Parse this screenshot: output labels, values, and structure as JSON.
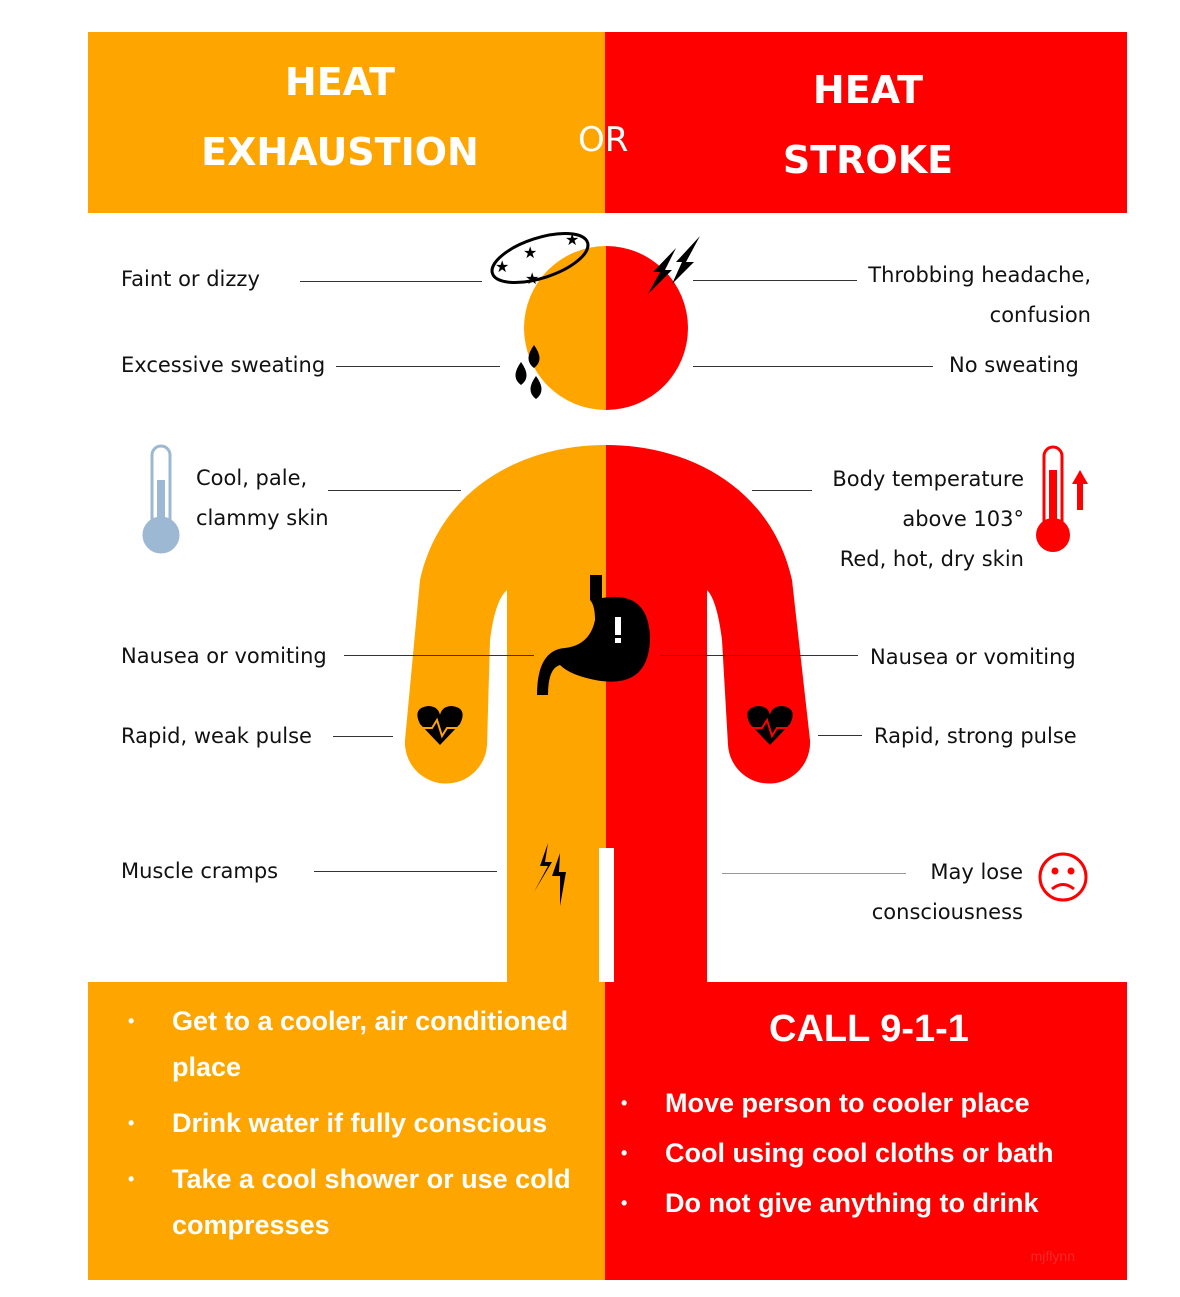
{
  "colors": {
    "exhaustion": "#FFA500",
    "stroke": "#FF0000",
    "icon": "#000000",
    "thermo_cool": "#9DB8D2"
  },
  "header": {
    "left_title_line1": "HEAT",
    "left_title_line2": "EXHAUSTION",
    "or": "OR",
    "right_title_line1": "HEAT",
    "right_title_line2": "STROKE"
  },
  "exhaustion_symptoms": [
    {
      "text": "Faint or dizzy",
      "icon": "dizzy-stars-icon"
    },
    {
      "text": "Excessive sweating",
      "icon": "sweat-drops-icon"
    },
    {
      "line1": "Cool, pale,",
      "line2": "clammy skin",
      "icon": "cool-thermometer-icon"
    },
    {
      "text": "Nausea or vomiting",
      "icon": "stomach-icon"
    },
    {
      "text": "Rapid, weak pulse",
      "icon": "heart-pulse-icon"
    },
    {
      "text": "Muscle cramps",
      "icon": "lightning-icon"
    }
  ],
  "stroke_symptoms": [
    {
      "line1": "Throbbing headache,",
      "line2": "confusion",
      "icon": "lightning-icon"
    },
    {
      "text": "No sweating"
    },
    {
      "line1": "Body temperature",
      "line2": "above 103°",
      "line3": "Red, hot, dry skin",
      "icon": "hot-thermometer-icon"
    },
    {
      "text": "Nausea or vomiting",
      "icon": "stomach-icon"
    },
    {
      "text": "Rapid, strong pulse",
      "icon": "heart-pulse-icon"
    },
    {
      "line1": "May lose",
      "line2": "consciousness",
      "icon": "sad-face-icon"
    }
  ],
  "exhaustion_actions": [
    "Get to a cooler, air conditioned place",
    "Drink water if fully conscious",
    "Take a cool shower or use cold compresses"
  ],
  "stroke_actions": {
    "title": "CALL 9-1-1",
    "items": [
      "Move person to cooler place",
      "Cool using cool cloths or bath",
      "Do not give anything to drink"
    ]
  },
  "watermark": "mjflynn"
}
